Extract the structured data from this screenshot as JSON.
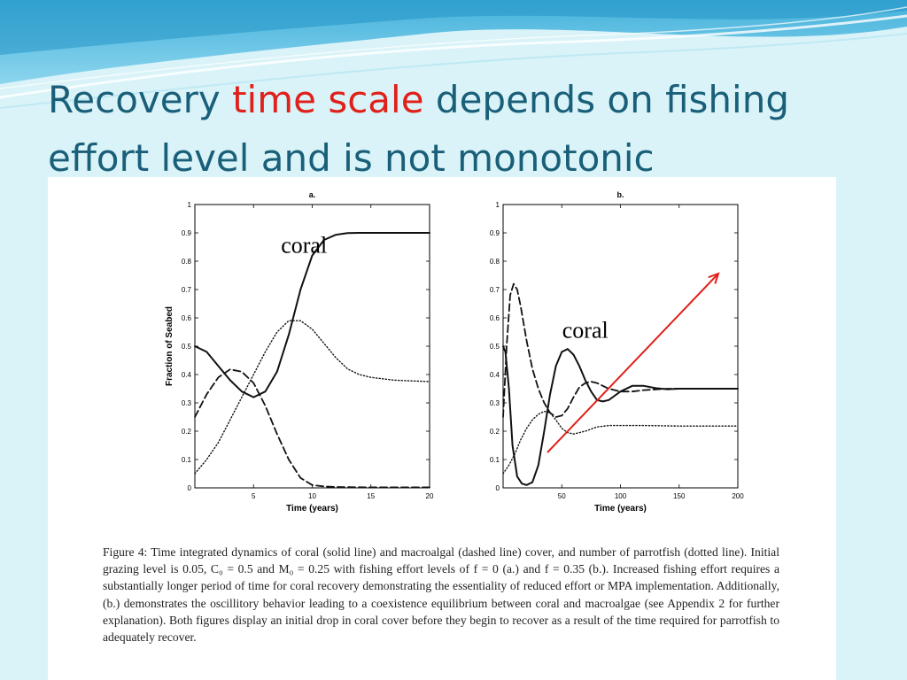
{
  "slide": {
    "title_part1": "Recovery ",
    "title_highlight": "time scale",
    "title_part2": " depends on fishing effort level and is not monotonic",
    "highlight_color": "#e0201a",
    "title_color": "#1a5f79"
  },
  "caption": "Figure 4: Time integrated dynamics of coral (solid line) and macroalgal (dashed line) cover, and number of parrotfish (dotted line). Initial grazing level is 0.05, C₀ = 0.5 and M₀ = 0.25 with fishing effort levels of f = 0 (a.) and f = 0.35 (b.). Increased fishing effort requires a substantially longer period of time for coral recovery demonstrating the essentiality of reduced effort or MPA implementation. Additionally, (b.) demonstrates the oscillitory behavior leading to a coexistence equilibrium between coral and macroalgae (see Appendix 2 for further explanation). Both figures display an initial drop in coral cover before they begin to recover as a result of the time required for parrotfish to adequately recover.",
  "chart_data": [
    {
      "type": "line",
      "title": "a.",
      "xlabel": "Time (years)",
      "ylabel": "Fraction of Seabed",
      "xlim": [
        0,
        20
      ],
      "ylim": [
        0,
        1
      ],
      "xticks": [
        5,
        10,
        15,
        20
      ],
      "yticks": [
        0,
        0.1,
        0.2,
        0.3,
        0.4,
        0.5,
        0.6,
        0.7,
        0.8,
        0.9,
        1
      ],
      "annotation": {
        "text": "coral",
        "x": 9.3,
        "y": 0.83
      },
      "series": [
        {
          "style": "solid",
          "x": [
            0,
            1,
            2,
            3,
            4,
            5,
            6,
            7,
            8,
            9,
            10,
            11,
            12,
            13,
            14,
            15,
            17,
            20
          ],
          "y": [
            0.5,
            0.48,
            0.43,
            0.38,
            0.34,
            0.32,
            0.34,
            0.41,
            0.54,
            0.7,
            0.82,
            0.875,
            0.893,
            0.899,
            0.9,
            0.9,
            0.9,
            0.9
          ]
        },
        {
          "style": "dashed",
          "x": [
            0,
            1,
            2,
            3,
            4,
            5,
            6,
            7,
            8,
            9,
            10,
            11,
            12,
            15,
            20
          ],
          "y": [
            0.25,
            0.33,
            0.39,
            0.418,
            0.41,
            0.37,
            0.29,
            0.19,
            0.1,
            0.035,
            0.01,
            0.005,
            0.003,
            0.002,
            0.002
          ]
        },
        {
          "style": "dotted",
          "x": [
            0,
            1,
            2,
            3,
            4,
            5,
            6,
            7,
            8,
            9,
            10,
            11,
            12,
            13,
            14,
            15,
            17,
            20
          ],
          "y": [
            0.05,
            0.1,
            0.16,
            0.24,
            0.32,
            0.4,
            0.48,
            0.55,
            0.59,
            0.59,
            0.56,
            0.51,
            0.46,
            0.42,
            0.4,
            0.39,
            0.38,
            0.375
          ]
        }
      ]
    },
    {
      "type": "line",
      "title": "b.",
      "xlabel": "Time (years)",
      "ylabel": "",
      "xlim": [
        0,
        200
      ],
      "ylim": [
        0,
        1
      ],
      "xticks": [
        50,
        100,
        150,
        200
      ],
      "yticks": [
        0,
        0.1,
        0.2,
        0.3,
        0.4,
        0.5,
        0.6,
        0.7,
        0.8,
        0.9,
        1
      ],
      "annotation": {
        "text": "coral",
        "x": 70,
        "y": 0.53
      },
      "series": [
        {
          "style": "solid",
          "x": [
            0,
            2,
            5,
            8,
            12,
            16,
            20,
            25,
            30,
            35,
            40,
            45,
            50,
            55,
            60,
            65,
            70,
            75,
            80,
            85,
            90,
            95,
            100,
            110,
            120,
            130,
            140,
            150,
            170,
            200
          ],
          "y": [
            0.5,
            0.48,
            0.35,
            0.15,
            0.04,
            0.015,
            0.01,
            0.02,
            0.08,
            0.2,
            0.33,
            0.43,
            0.48,
            0.49,
            0.47,
            0.43,
            0.38,
            0.34,
            0.31,
            0.305,
            0.31,
            0.325,
            0.34,
            0.36,
            0.36,
            0.352,
            0.348,
            0.35,
            0.35,
            0.35
          ]
        },
        {
          "style": "dashed",
          "x": [
            0,
            3,
            6,
            9,
            12,
            15,
            20,
            25,
            30,
            35,
            40,
            45,
            50,
            55,
            60,
            65,
            70,
            75,
            80,
            85,
            90,
            100,
            110,
            120,
            140,
            160,
            200
          ],
          "y": [
            0.25,
            0.5,
            0.68,
            0.72,
            0.7,
            0.64,
            0.52,
            0.42,
            0.35,
            0.3,
            0.265,
            0.25,
            0.255,
            0.28,
            0.32,
            0.355,
            0.37,
            0.375,
            0.37,
            0.36,
            0.35,
            0.34,
            0.34,
            0.345,
            0.35,
            0.35,
            0.35
          ]
        },
        {
          "style": "dotted",
          "x": [
            0,
            5,
            10,
            15,
            20,
            25,
            30,
            35,
            40,
            45,
            50,
            55,
            60,
            70,
            80,
            90,
            100,
            120,
            150,
            200
          ],
          "y": [
            0.05,
            0.08,
            0.12,
            0.17,
            0.21,
            0.24,
            0.26,
            0.27,
            0.265,
            0.24,
            0.21,
            0.195,
            0.19,
            0.2,
            0.215,
            0.22,
            0.22,
            0.22,
            0.218,
            0.218
          ]
        }
      ]
    }
  ]
}
